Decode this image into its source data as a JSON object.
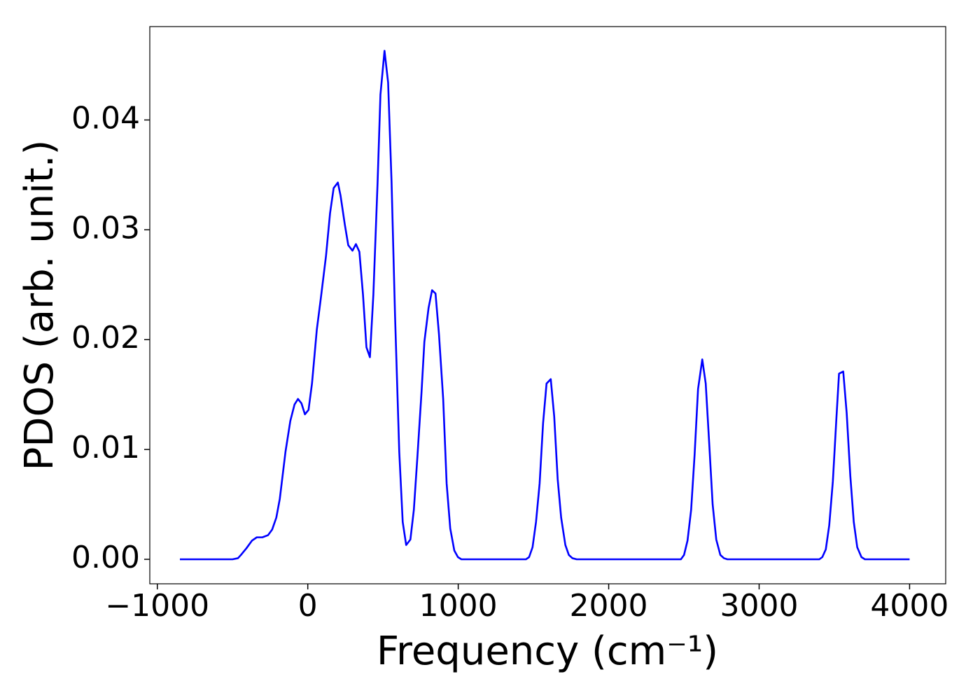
{
  "chart_data": {
    "type": "line",
    "xlabel": "Frequency (cm⁻¹)",
    "ylabel": "PDOS (arb. unit.)",
    "x": [
      -850,
      -500,
      -464,
      -441,
      -408,
      -371,
      -339,
      -302,
      -264,
      -237,
      -209,
      -186,
      -148,
      -116,
      -88,
      -65,
      -42,
      -19,
      5,
      28,
      60,
      88,
      121,
      148,
      172,
      200,
      218,
      246,
      269,
      297,
      320,
      343,
      367,
      390,
      413,
      436,
      464,
      483,
      510,
      534,
      557,
      580,
      608,
      631,
      654,
      682,
      705,
      729,
      756,
      775,
      803,
      826,
      849,
      872,
      900,
      923,
      947,
      974,
      998,
      1021,
      1450,
      1471,
      1494,
      1517,
      1541,
      1564,
      1587,
      1615,
      1638,
      1661,
      1684,
      1712,
      1735,
      1759,
      1787,
      2480,
      2501,
      2524,
      2548,
      2571,
      2594,
      2622,
      2645,
      2668,
      2691,
      2715,
      2742,
      2766,
      2789,
      3400,
      3420,
      3443,
      3466,
      3490,
      3513,
      3531,
      3559,
      3582,
      3606,
      3629,
      3652,
      3680,
      3703,
      4000
    ],
    "series": [
      {
        "name": "PDOS",
        "color": "#0000ff",
        "values": [
          0,
          0,
          0.0001,
          0.00045,
          0.001,
          0.0017,
          0.002,
          0.002,
          0.0022,
          0.0027,
          0.0038,
          0.0055,
          0.0098,
          0.0126,
          0.0141,
          0.0146,
          0.0142,
          0.0132,
          0.0136,
          0.016,
          0.0209,
          0.0239,
          0.0276,
          0.0315,
          0.0338,
          0.0343,
          0.0331,
          0.0305,
          0.0286,
          0.0281,
          0.0287,
          0.028,
          0.0241,
          0.0193,
          0.0184,
          0.0241,
          0.0343,
          0.0423,
          0.0463,
          0.0434,
          0.0343,
          0.0222,
          0.0098,
          0.0034,
          0.0013,
          0.0018,
          0.0045,
          0.0094,
          0.0152,
          0.0198,
          0.0229,
          0.0245,
          0.0242,
          0.0205,
          0.0146,
          0.0069,
          0.0028,
          0.0008,
          0.0002,
          0,
          0,
          0.0002,
          0.0011,
          0.0034,
          0.0069,
          0.0124,
          0.016,
          0.0164,
          0.013,
          0.0073,
          0.0038,
          0.0013,
          0.0004,
          0.0001,
          0,
          0,
          0.0004,
          0.0017,
          0.0045,
          0.0095,
          0.0155,
          0.0182,
          0.016,
          0.0106,
          0.005,
          0.0018,
          0.0004,
          0.0001,
          0,
          0,
          0.0002,
          0.0009,
          0.0031,
          0.0071,
          0.0127,
          0.0169,
          0.0171,
          0.0133,
          0.0076,
          0.0034,
          0.0011,
          0.0002,
          0,
          0
        ]
      }
    ],
    "xlim": [
      -1050,
      4240
    ],
    "ylim": [
      -0.00223,
      0.0485
    ],
    "xticks": [
      {
        "value": -1000,
        "label": "−1000"
      },
      0,
      1000,
      2000,
      3000,
      4000
    ],
    "yticks": [
      {
        "value": 0,
        "label": "0.00"
      },
      {
        "value": 0.01,
        "label": "0.01"
      },
      {
        "value": 0.02,
        "label": "0.02"
      },
      {
        "value": 0.03,
        "label": "0.03"
      },
      {
        "value": 0.04,
        "label": "0.04"
      }
    ]
  }
}
